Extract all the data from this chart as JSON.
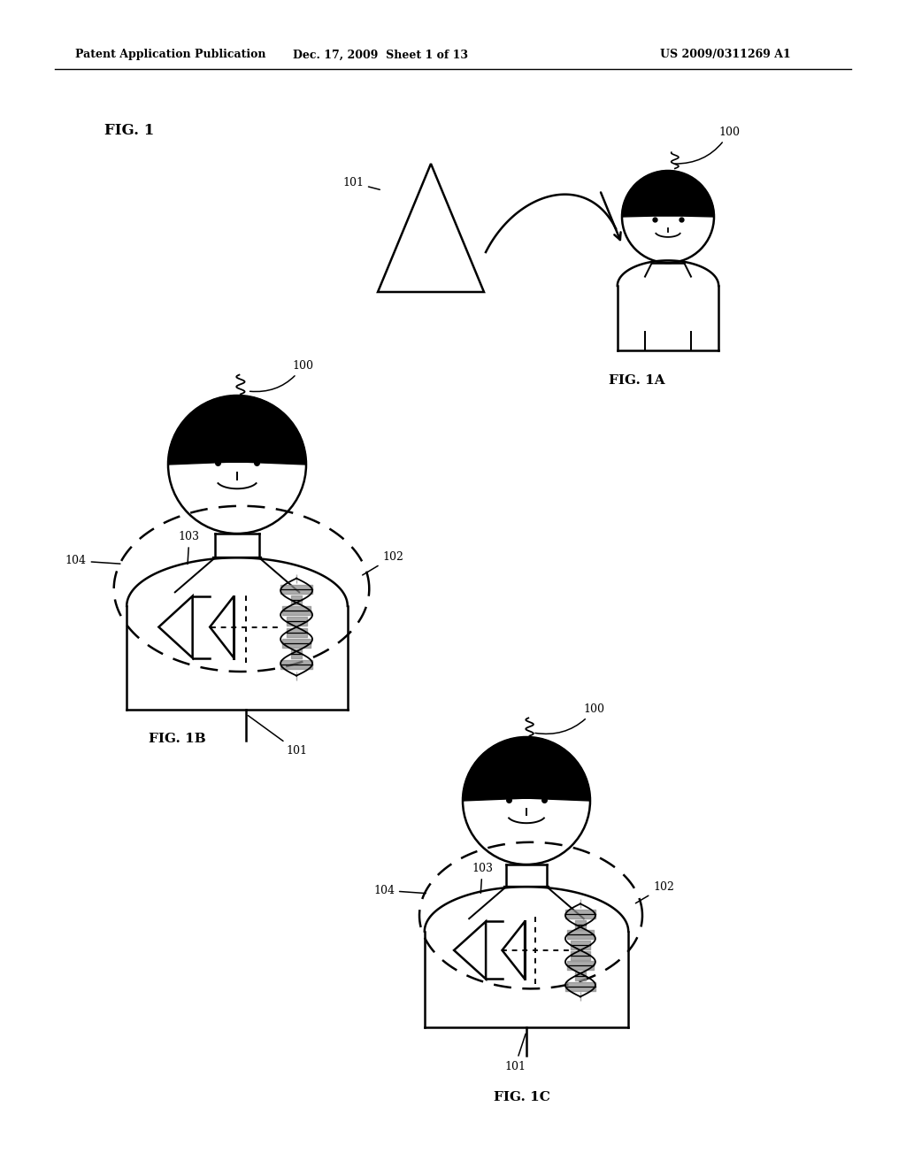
{
  "bg_color": "#ffffff",
  "line_color": "#000000",
  "header_left": "Patent Application Publication",
  "header_mid": "Dec. 17, 2009  Sheet 1 of 13",
  "header_right": "US 2009/0311269 A1",
  "fig1_label": "FIG. 1",
  "fig1a_label": "FIG. 1A",
  "fig1b_label": "FIG. 1B",
  "fig1c_label": "FIG. 1C"
}
